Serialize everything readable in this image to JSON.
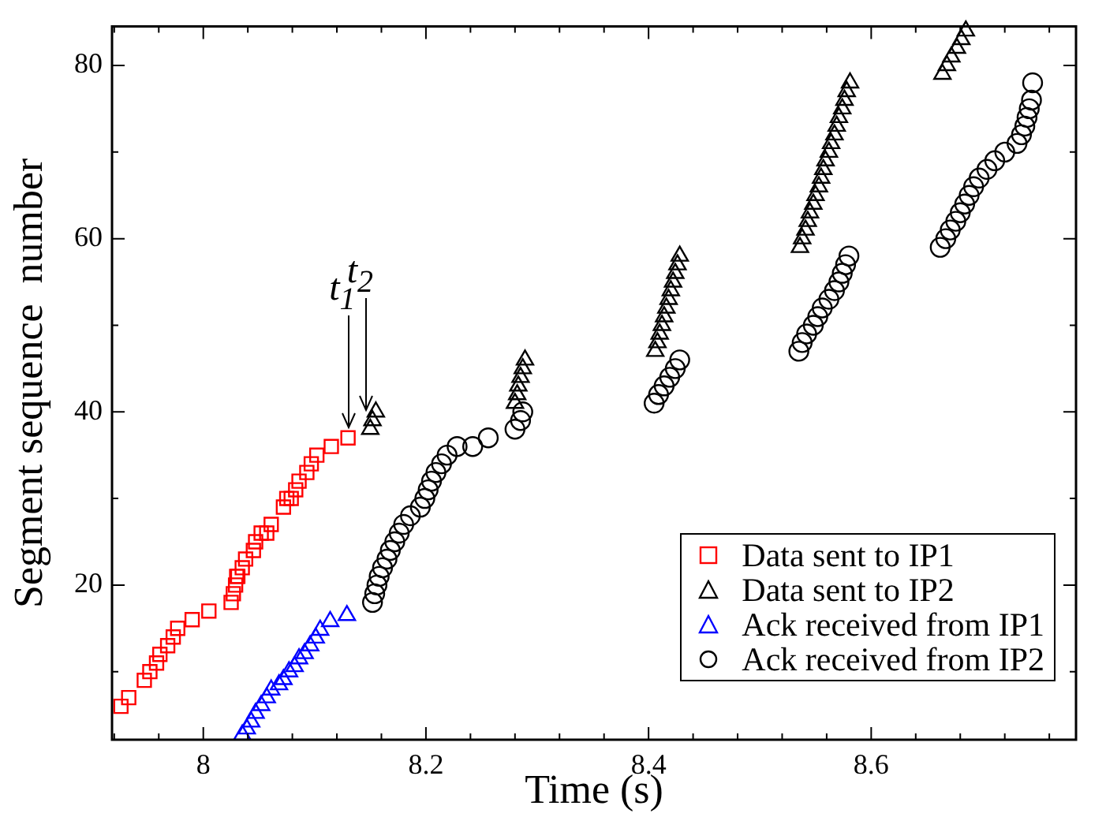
{
  "chart_data": {
    "type": "scatter",
    "xlabel": "Time (s)",
    "ylabel": "Segment sequence  number",
    "xlim": [
      7.918,
      8.784
    ],
    "ylim": [
      2.14,
      84.5
    ],
    "xticks": [
      {
        "value": 7.92,
        "label": null
      },
      {
        "value": 7.96,
        "label": null
      },
      8,
      {
        "value": 8.04,
        "label": null
      },
      {
        "value": 8.08,
        "label": null
      },
      {
        "value": 8.12,
        "label": null
      },
      {
        "value": 8.16,
        "label": null
      },
      8.2,
      {
        "value": 8.24,
        "label": null
      },
      {
        "value": 8.28,
        "label": null
      },
      {
        "value": 8.32,
        "label": null
      },
      {
        "value": 8.36,
        "label": null
      },
      8.4,
      {
        "value": 8.44,
        "label": null
      },
      {
        "value": 8.48,
        "label": null
      },
      {
        "value": 8.52,
        "label": null
      },
      {
        "value": 8.56,
        "label": null
      },
      8.6,
      {
        "value": 8.64,
        "label": null
      },
      {
        "value": 8.68,
        "label": null
      },
      {
        "value": 8.72,
        "label": null
      },
      {
        "value": 8.76,
        "label": null
      }
    ],
    "yticks": [
      {
        "value": 10,
        "label": null
      },
      20,
      {
        "value": 30,
        "label": null
      },
      40,
      {
        "value": 50,
        "label": null
      },
      60,
      {
        "value": 70,
        "label": null
      },
      80
    ],
    "legend": "bottom right",
    "annotations": [
      {
        "text": "t$_{1}$",
        "x": 8.13,
        "y": 37
      },
      {
        "text": "t$_{2}$",
        "x": 8.146,
        "y": 39
      }
    ],
    "series": [
      {
        "name": "Data sent to IP1",
        "color": "#ff0000",
        "marker": "square",
        "x": [
          7.926,
          7.933,
          7.947,
          7.952,
          7.958,
          7.961,
          7.968,
          7.973,
          7.977,
          7.99,
          8.005,
          8.025,
          8.027,
          8.029,
          8.03,
          8.031,
          8.035,
          8.038,
          8.045,
          8.047,
          8.052,
          8.057,
          8.061,
          8.072,
          8.075,
          8.079,
          8.083,
          8.086,
          8.093,
          8.097,
          8.102,
          8.115,
          8.13
        ],
        "values": [
          6,
          7,
          9,
          10,
          11,
          12,
          13,
          14,
          15,
          16,
          17,
          18,
          19,
          20,
          21,
          21,
          22,
          23,
          24,
          25,
          26,
          26,
          27,
          29,
          30,
          30,
          31,
          32,
          33,
          34,
          35,
          36,
          37
        ]
      },
      {
        "name": "Data sent to IP2",
        "color": "#000000",
        "marker": "triangle",
        "x": [
          8.15,
          8.152,
          8.155,
          8.28,
          8.282,
          8.283,
          8.285,
          8.287,
          8.289,
          8.406,
          8.408,
          8.41,
          8.412,
          8.414,
          8.416,
          8.418,
          8.42,
          8.422,
          8.424,
          8.426,
          8.428,
          8.536,
          8.538,
          8.541,
          8.543,
          8.545,
          8.548,
          8.55,
          8.553,
          8.555,
          8.557,
          8.559,
          8.562,
          8.564,
          8.567,
          8.569,
          8.571,
          8.574,
          8.576,
          8.578,
          8.581,
          8.664,
          8.668,
          8.672,
          8.677,
          8.681,
          8.685
        ],
        "values": [
          38,
          39,
          40,
          41,
          42,
          43,
          44,
          45,
          46,
          47,
          48,
          49,
          50,
          51,
          52,
          53,
          54,
          55,
          56,
          57,
          58,
          59,
          60,
          61,
          62,
          63,
          64,
          65,
          66,
          67,
          68,
          69,
          70,
          71,
          72,
          73,
          74,
          75,
          76,
          77,
          78,
          79,
          80,
          81,
          82,
          83,
          84
        ]
      },
      {
        "name": "Ack received from IP1",
        "color": "#0000ff",
        "marker": "triangle",
        "x": [
          8.035,
          8.039,
          8.043,
          8.047,
          8.052,
          8.057,
          8.061,
          8.068,
          8.072,
          8.077,
          8.082,
          8.086,
          8.091,
          8.096,
          8.101,
          8.105,
          8.114,
          8.129
        ],
        "values": [
          2.7,
          3.4,
          4.2,
          5.2,
          6.1,
          7,
          7.9,
          8.5,
          9.1,
          10,
          10.6,
          11.5,
          12.1,
          13,
          13.9,
          14.8,
          15.8,
          16.5
        ]
      },
      {
        "name": "Ack received from IP2",
        "color": "#000000",
        "marker": "circle",
        "x": [
          8.152,
          8.154,
          8.156,
          8.158,
          8.161,
          8.165,
          8.168,
          8.172,
          8.176,
          8.18,
          8.186,
          8.195,
          8.199,
          8.202,
          8.205,
          8.209,
          8.214,
          8.219,
          8.228,
          8.242,
          8.256,
          8.28,
          8.285,
          8.287,
          8.405,
          8.409,
          8.414,
          8.419,
          8.424,
          8.428,
          8.535,
          8.538,
          8.542,
          8.548,
          8.552,
          8.556,
          8.562,
          8.567,
          8.571,
          8.574,
          8.577,
          8.58,
          8.662,
          8.667,
          8.671,
          8.676,
          8.68,
          8.684,
          8.688,
          8.692,
          8.697,
          8.704,
          8.711,
          8.72,
          8.731,
          8.735,
          8.738,
          8.74,
          8.742,
          8.744,
          8.745
        ],
        "values": [
          18,
          19,
          20,
          21,
          22,
          23,
          24,
          25,
          26,
          27,
          28,
          29,
          30,
          31,
          32,
          33,
          34,
          35,
          36,
          36,
          37,
          38,
          39,
          40,
          41,
          42,
          43,
          44,
          45,
          46,
          47,
          48,
          49,
          50,
          51,
          52,
          53,
          54,
          55,
          56,
          57,
          58,
          59,
          60,
          61,
          62,
          63,
          64,
          65,
          66,
          67,
          68,
          69,
          70,
          71,
          72,
          73,
          74,
          75,
          76,
          78
        ]
      }
    ]
  }
}
